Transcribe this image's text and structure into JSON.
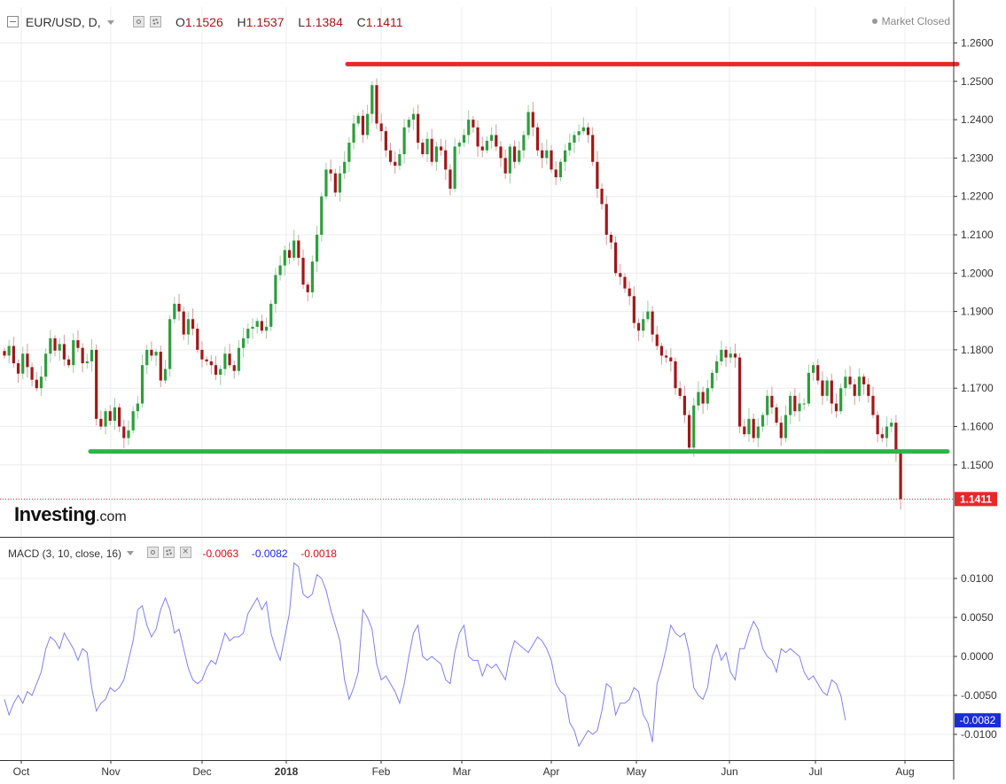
{
  "header": {
    "symbol": "EUR/USD, D,",
    "open_label": "O",
    "open": "1.1526",
    "high_label": "H",
    "high": "1.1537",
    "low_label": "L",
    "low": "1.1384",
    "close_label": "C",
    "close": "1.1411",
    "market_status": "Market Closed",
    "logo_main": "Investing",
    "logo_suffix": ".com"
  },
  "indicator": {
    "label": "MACD (3, 10, close, 16)",
    "value1": "-0.0063",
    "value2": "-0.0082",
    "value3": "-0.0018"
  },
  "colors": {
    "up": "#2e9e3c",
    "down": "#a01818",
    "resistance": "#e8282c",
    "support": "#2eb34a",
    "macd_line": "#8080f0",
    "price_tag": "#e8282c",
    "macd_tag": "#1a2bd8"
  },
  "chart_data": {
    "type": "candlestick",
    "instrument": "EUR/USD",
    "timeframe": "D",
    "x_labels": [
      "Oct",
      "Nov",
      "Dec",
      "2018",
      "Feb",
      "Mar",
      "Apr",
      "May",
      "Jun",
      "Jul",
      "Aug"
    ],
    "y_ticks": [
      "1.2600",
      "1.2500",
      "1.2400",
      "1.2300",
      "1.2200",
      "1.2100",
      "1.2000",
      "1.1900",
      "1.1800",
      "1.1700",
      "1.1600",
      "1.1500"
    ],
    "ylim": [
      1.1375,
      1.2645
    ],
    "last_price": "1.1411",
    "resistance_level": 1.2545,
    "support_level": 1.1535,
    "grid": true,
    "series_close": [
      1.1785,
      1.181,
      1.1765,
      1.1738,
      1.179,
      1.1755,
      1.1722,
      1.17,
      1.173,
      1.179,
      1.183,
      1.1798,
      1.1815,
      1.1775,
      1.176,
      1.1825,
      1.1805,
      1.1765,
      1.177,
      1.18,
      1.162,
      1.16,
      1.164,
      1.1615,
      1.165,
      1.16,
      1.157,
      1.159,
      1.164,
      1.166,
      1.176,
      1.18,
      1.1785,
      1.1795,
      1.172,
      1.175,
      1.188,
      1.192,
      1.19,
      1.184,
      1.188,
      1.1855,
      1.18,
      1.1775,
      1.177,
      1.176,
      1.1735,
      1.175,
      1.179,
      1.176,
      1.1745,
      1.1805,
      1.183,
      1.1855,
      1.186,
      1.1875,
      1.185,
      1.186,
      1.192,
      1.1995,
      1.202,
      1.206,
      1.204,
      1.2085,
      1.204,
      1.197,
      1.195,
      1.203,
      1.21,
      1.22,
      1.227,
      1.226,
      1.221,
      1.226,
      1.229,
      1.234,
      1.239,
      1.241,
      1.236,
      1.2415,
      1.249,
      1.239,
      1.237,
      1.232,
      1.229,
      1.228,
      1.231,
      1.238,
      1.24,
      1.2415,
      1.234,
      1.231,
      1.235,
      1.229,
      1.233,
      1.232,
      1.227,
      1.222,
      1.233,
      1.234,
      1.236,
      1.24,
      1.238,
      1.233,
      1.232,
      1.2345,
      1.236,
      1.233,
      1.23,
      1.226,
      1.233,
      1.229,
      1.232,
      1.236,
      1.242,
      1.238,
      1.232,
      1.23,
      1.232,
      1.227,
      1.225,
      1.229,
      1.232,
      1.234,
      1.236,
      1.237,
      1.238,
      1.236,
      1.229,
      1.222,
      1.218,
      1.21,
      1.208,
      1.2,
      1.199,
      1.196,
      1.194,
      1.187,
      1.185,
      1.188,
      1.19,
      1.184,
      1.181,
      1.1785,
      1.178,
      1.177,
      1.17,
      1.168,
      1.163,
      1.1545,
      1.1655,
      1.169,
      1.166,
      1.17,
      1.174,
      1.177,
      1.18,
      1.178,
      1.179,
      1.178,
      1.16,
      1.158,
      1.162,
      1.157,
      1.16,
      1.163,
      1.168,
      1.165,
      1.161,
      1.157,
      1.163,
      1.168,
      1.164,
      1.166,
      1.166,
      1.174,
      1.176,
      1.172,
      1.168,
      1.172,
      1.166,
      1.164,
      1.17,
      1.173,
      1.171,
      1.168,
      1.173,
      1.171,
      1.168,
      1.163,
      1.158,
      1.157,
      1.16,
      1.161,
      1.1535,
      1.1411
    ],
    "macd": {
      "label": "MACD (3, 10, close, 16)",
      "ylim": [
        -0.0127,
        0.0123
      ],
      "y_ticks": [
        "0.0100",
        "0.0050",
        "0.0000",
        "-0.0050",
        "-0.0100"
      ],
      "current": "-0.0082",
      "values": [
        -0.0055,
        -0.0075,
        -0.006,
        -0.005,
        -0.006,
        -0.0045,
        -0.005,
        -0.0035,
        -0.002,
        0.001,
        0.0025,
        0.002,
        0.001,
        0.003,
        0.002,
        0.001,
        -0.0005,
        0.001,
        0.0005,
        -0.004,
        -0.007,
        -0.006,
        -0.0055,
        -0.004,
        -0.0045,
        -0.004,
        -0.003,
        -0.0005,
        0.002,
        0.006,
        0.0065,
        0.004,
        0.0025,
        0.0035,
        0.006,
        0.0075,
        0.006,
        0.003,
        0.0035,
        0.001,
        -0.0015,
        -0.003,
        -0.0035,
        -0.003,
        -0.0015,
        -0.0005,
        -0.001,
        0.001,
        0.003,
        0.002,
        0.0025,
        0.0025,
        0.003,
        0.0055,
        0.0065,
        0.0075,
        0.006,
        0.007,
        0.003,
        0.001,
        -0.0005,
        0.0025,
        0.0055,
        0.012,
        0.0115,
        0.008,
        0.0075,
        0.008,
        0.0105,
        0.01,
        0.0085,
        0.006,
        0.004,
        0.002,
        -0.003,
        -0.0055,
        -0.004,
        -0.002,
        0.006,
        0.005,
        0.0035,
        -0.001,
        -0.003,
        -0.0025,
        -0.0035,
        -0.0045,
        -0.006,
        -0.0035,
        0.0,
        0.003,
        0.004,
        0.0,
        -0.0005,
        0.0,
        -0.0005,
        -0.001,
        -0.003,
        -0.0035,
        0.0005,
        0.003,
        0.004,
        0.0,
        -0.0005,
        -0.0005,
        -0.0025,
        -0.001,
        -0.0015,
        -0.001,
        -0.002,
        -0.003,
        0.0,
        0.002,
        0.0015,
        0.001,
        0.0005,
        0.0015,
        0.0025,
        0.002,
        0.001,
        -0.0005,
        -0.0035,
        -0.0045,
        -0.005,
        -0.0085,
        -0.0095,
        -0.0115,
        -0.0105,
        -0.0095,
        -0.01,
        -0.0095,
        -0.007,
        -0.0035,
        -0.004,
        -0.0075,
        -0.006,
        -0.006,
        -0.0055,
        -0.004,
        -0.0045,
        -0.0075,
        -0.0085,
        -0.011,
        -0.0035,
        -0.0015,
        0.001,
        0.004,
        0.003,
        0.0025,
        0.003,
        0.0005,
        -0.004,
        -0.005,
        -0.0055,
        -0.004,
        0.0,
        0.0015,
        -0.0005,
        0.0005,
        -0.002,
        -0.003,
        0.001,
        0.001,
        0.003,
        0.0045,
        0.0035,
        0.001,
        0.0,
        -0.0005,
        -0.002,
        0.001,
        0.0005,
        0.001,
        0.0005,
        0.0,
        -0.002,
        -0.003,
        -0.0025,
        -0.0035,
        -0.0045,
        -0.005,
        -0.003,
        -0.0035,
        -0.005,
        -0.0082
      ]
    }
  }
}
